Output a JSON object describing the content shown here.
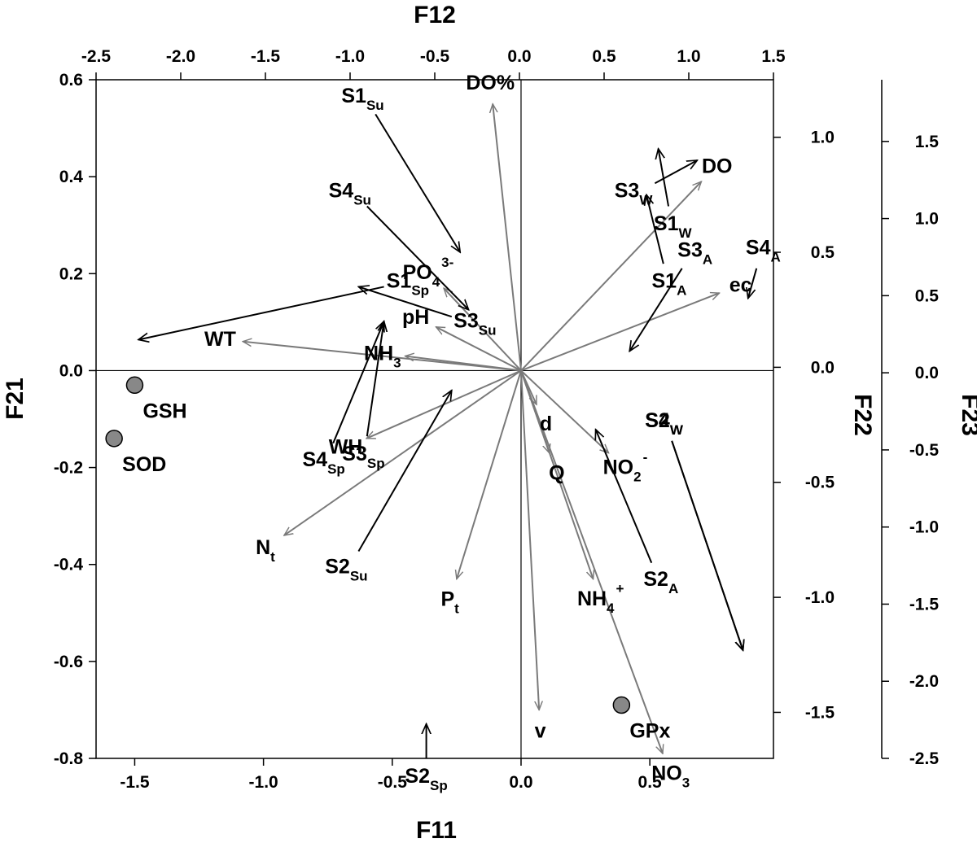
{
  "chart_data": {
    "type": "scatter",
    "subtype": "biplot with multiple coordinate systems",
    "title": "",
    "axes": {
      "bottom": {
        "label": "F11",
        "range": [
          -1.65,
          0.98
        ],
        "ticks": [
          -1.5,
          -1.0,
          -0.5,
          0.0,
          0.5
        ],
        "tick_labels": [
          "-1.5",
          "-1.0",
          "-0.5",
          "0.0",
          "0.5"
        ]
      },
      "top": {
        "label": "F12",
        "range": [
          -2.5,
          1.5
        ],
        "ticks": [
          -2.5,
          -2.0,
          -1.5,
          -1.0,
          -0.5,
          0.0,
          0.5,
          1.0,
          1.5
        ],
        "tick_labels": [
          "-2.5",
          "-2.0",
          "-1.5",
          "-1.0",
          "-0.5",
          "0.0",
          "0.5",
          "1.0",
          "1.5"
        ]
      },
      "left": {
        "label": "F21",
        "range": [
          -0.8,
          0.6
        ],
        "ticks": [
          0.6,
          0.4,
          0.2,
          0.0,
          -0.2,
          -0.4,
          -0.6,
          -0.8
        ],
        "tick_labels": [
          "0.6",
          "0.4",
          "0.2",
          "0.0",
          "-0.2",
          "-0.4",
          "-0.6",
          "-0.8"
        ]
      },
      "right_inner": {
        "label": "F22",
        "range": [
          -1.7,
          1.25
        ],
        "ticks": [
          1.0,
          0.5,
          0.0,
          -0.5,
          -1.0,
          -1.5
        ],
        "tick_labels": [
          "1.0",
          "0.5",
          "0.0",
          "-0.5",
          "-1.0",
          "-1.5"
        ]
      },
      "right_outer": {
        "label": "F23",
        "range": [
          -2.5,
          1.9
        ],
        "ticks": [
          1.5,
          1.0,
          0.5,
          0.0,
          -0.5,
          -1.0,
          -1.5,
          -2.0,
          -2.5
        ],
        "tick_labels": [
          "1.5",
          "1.0",
          "0.5",
          "0.0",
          "-0.5",
          "-1.0",
          "-1.5",
          "-2.0",
          "-2.5"
        ]
      }
    },
    "variable_vectors": [
      {
        "label": "DO%",
        "sub": "",
        "sup": "",
        "end": [
          -0.11,
          0.55
        ]
      },
      {
        "label": "PO",
        "sub": "4",
        "sup": "3-",
        "end": [
          -0.3,
          0.17
        ]
      },
      {
        "label": "pH",
        "sub": "",
        "sup": "",
        "end": [
          -0.33,
          0.09
        ]
      },
      {
        "label": "WT",
        "sub": "",
        "sup": "",
        "end": [
          -1.08,
          0.06
        ]
      },
      {
        "label": "NH",
        "sub": "3",
        "sup": "",
        "end": [
          -0.45,
          0.03
        ]
      },
      {
        "label": "WH",
        "sub": "",
        "sup": "",
        "end": [
          -0.6,
          -0.14
        ]
      },
      {
        "label": "N",
        "sub": "t",
        "sup": "",
        "end": [
          -0.92,
          -0.34
        ]
      },
      {
        "label": "P",
        "sub": "t",
        "sup": "",
        "end": [
          -0.25,
          -0.43
        ]
      },
      {
        "label": "v",
        "sub": "",
        "sup": "",
        "end": [
          0.07,
          -0.7
        ]
      },
      {
        "label": "NH",
        "sub": "4",
        "sup": "+",
        "end": [
          0.28,
          -0.43
        ]
      },
      {
        "label": "NO",
        "sub": "3",
        "sup": "",
        "end": [
          0.55,
          -0.79
        ]
      },
      {
        "label": "NO",
        "sub": "2",
        "sup": "-",
        "end": [
          0.34,
          -0.17
        ]
      },
      {
        "label": "Q",
        "sub": "",
        "sup": "",
        "end": [
          0.11,
          -0.17
        ]
      },
      {
        "label": "d",
        "sub": "",
        "sup": "",
        "end": [
          0.06,
          -0.07
        ]
      },
      {
        "label": "DO",
        "sub": "",
        "sup": "",
        "end": [
          0.7,
          0.39
        ]
      },
      {
        "label": "ec",
        "sub": "",
        "sup": "",
        "end": [
          0.77,
          0.16
        ]
      }
    ],
    "sample_vectors_F12_F22": [
      {
        "label": "S1",
        "sub": "Su",
        "start": [
          -0.85,
          1.1
        ],
        "end": [
          -0.35,
          0.5
        ]
      },
      {
        "label": "S4",
        "sub": "Su",
        "start": [
          -0.9,
          0.7
        ],
        "end": [
          -0.3,
          0.25
        ]
      },
      {
        "label": "S1",
        "sub": "Sp",
        "start": [
          -0.8,
          0.35
        ],
        "end": [
          -2.25,
          0.12
        ]
      },
      {
        "label": "S3",
        "sub": "Su",
        "start": [
          -0.4,
          0.22
        ],
        "end": [
          -0.95,
          0.35
        ]
      },
      {
        "label": "S4",
        "sub": "Sp",
        "start": [
          -1.1,
          -0.33
        ],
        "end": [
          -0.8,
          0.2
        ]
      },
      {
        "label": "S3",
        "sub": "Sp",
        "start": [
          -0.9,
          -0.3
        ],
        "end": [
          -0.8,
          0.2
        ]
      },
      {
        "label": "S2",
        "sub": "Su",
        "start": [
          -0.95,
          -0.8
        ],
        "end": [
          -0.4,
          -0.1
        ]
      },
      {
        "label": "S2",
        "sub": "Sp",
        "start": [
          -0.55,
          -1.7
        ],
        "end": [
          -0.55,
          -1.55
        ]
      },
      {
        "label": "S1",
        "sub": "W",
        "start": [
          0.88,
          0.7
        ],
        "end": [
          0.82,
          0.95
        ]
      },
      {
        "label": "S3",
        "sub": "W",
        "start": [
          0.8,
          0.8
        ],
        "end": [
          1.05,
          0.9
        ]
      },
      {
        "label": "S1",
        "sub": "A",
        "start": [
          0.85,
          0.45
        ],
        "end": [
          0.75,
          0.75
        ]
      },
      {
        "label": "S3",
        "sub": "A",
        "start": [
          0.96,
          0.43
        ],
        "end": [
          0.65,
          0.07
        ]
      },
      {
        "label": "S4",
        "sub": "A",
        "start": [
          1.4,
          0.43
        ],
        "end": [
          1.35,
          0.3
        ]
      },
      {
        "label": "S2",
        "sub": "A",
        "start": [
          0.78,
          -0.85
        ],
        "end": [
          0.45,
          -0.27
        ]
      },
      {
        "label": "S2",
        "sub": "W",
        "start": [
          0.9,
          -0.32
        ],
        "end": [
          1.32,
          -1.23
        ]
      },
      {
        "label": "S4",
        "sub": "W",
        "start": [
          0.9,
          -0.32
        ],
        "end": [
          1.32,
          -1.23
        ]
      }
    ],
    "points": [
      {
        "label": "GSH",
        "x": -1.5,
        "y": -0.03
      },
      {
        "label": "SOD",
        "x": -1.58,
        "y": -0.14
      },
      {
        "label": "GPx",
        "x": 0.39,
        "y": -0.69
      }
    ]
  }
}
